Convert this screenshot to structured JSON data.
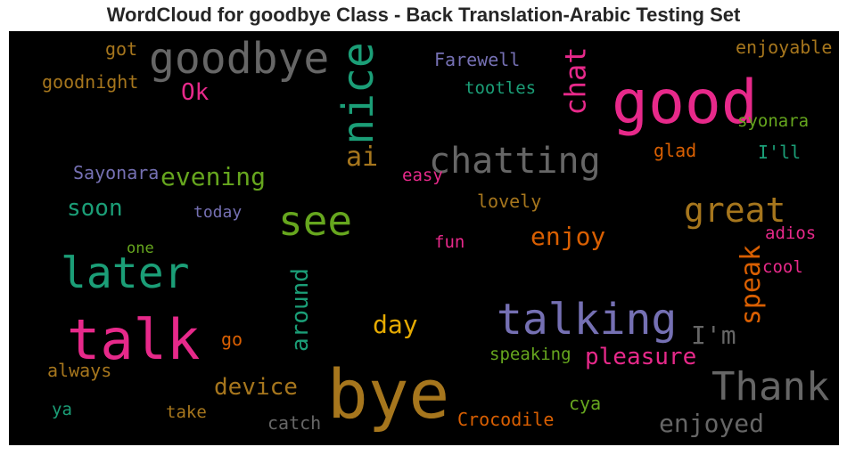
{
  "title": "WordCloud for goodbye Class - Back Translation-Arabic Testing Set",
  "colors": {
    "pink": "#e7298a",
    "orange": "#d95f02",
    "teal": "#1b9e77",
    "purple": "#7570b3",
    "green": "#66a61e",
    "gold": "#e6ab02",
    "brown": "#a6761d",
    "gray": "#666666"
  },
  "words": {
    "bye": "bye",
    "talk": "talk",
    "good": "good",
    "talking": "talking",
    "later": "later",
    "thank": "Thank",
    "goodbye": "goodbye",
    "see": "see",
    "nice": "nice",
    "chatting": "chatting",
    "great": "great",
    "speak": "speak",
    "around": "around",
    "enjoyed": "enjoyed",
    "device": "device",
    "chat": "chat",
    "pleasure": "pleasure",
    "im": "I'm",
    "evening": "evening",
    "ai": "ai",
    "day": "day",
    "enjoy": "enjoy",
    "ok": "Ok",
    "soon": "soon",
    "speaking": "speaking",
    "sayonara": "Sayonara",
    "crocodile": "Crocodile",
    "goodnight": "goodnight",
    "farewell": "Farewell",
    "tootles": "tootles",
    "syonara": "syonara",
    "enjoyable": "enjoyable",
    "got": "got",
    "glad": "glad",
    "ill": "I'll",
    "easy": "easy",
    "lovely": "lovely",
    "today": "today",
    "fun": "fun",
    "one": "one",
    "adios": "adios",
    "cool": "cool",
    "go": "go",
    "always": "always",
    "ya": "ya",
    "take": "take",
    "catch": "catch",
    "cya": "cya"
  }
}
